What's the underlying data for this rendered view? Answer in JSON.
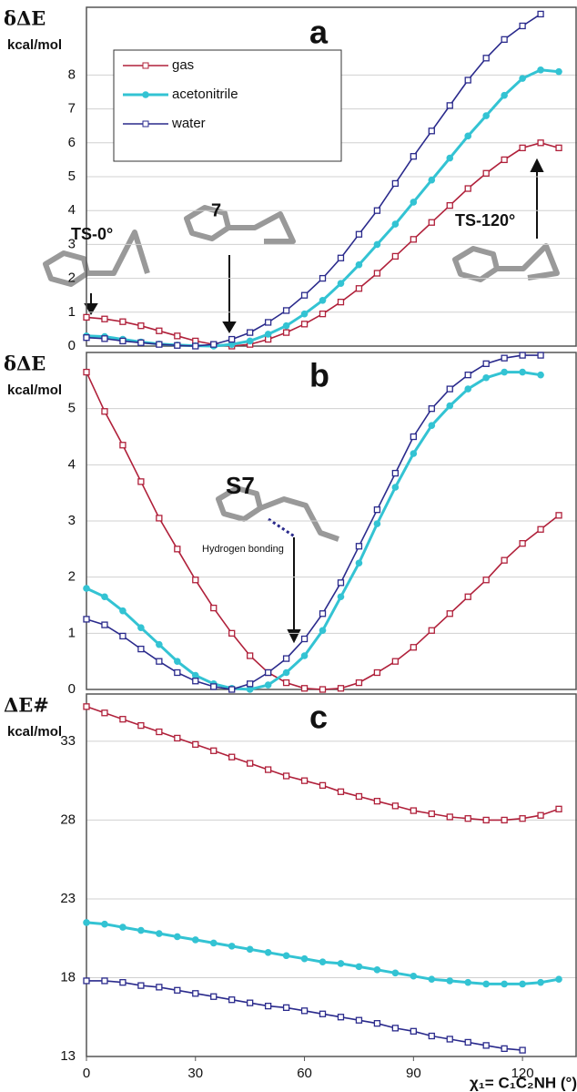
{
  "chart_data": [
    {
      "type": "line",
      "panel_label": "a",
      "y_label": "δΔE",
      "y_unit": "kcal/mol",
      "x": [
        0,
        5,
        10,
        15,
        20,
        25,
        30,
        35,
        40,
        45,
        50,
        55,
        60,
        65,
        70,
        75,
        80,
        85,
        90,
        95,
        100,
        105,
        110,
        115,
        120,
        125,
        130
      ],
      "xlim": [
        0,
        135
      ],
      "ylim": [
        0,
        10
      ],
      "yticks": [
        0,
        1,
        2,
        3,
        4,
        5,
        6,
        7,
        8
      ],
      "grid": true,
      "legend": "upper left",
      "annotations": [
        "TS-0°",
        "7",
        "TS-120°"
      ],
      "series": [
        {
          "name": "gas",
          "color": "#b0203a",
          "marker": "open",
          "values": [
            0.85,
            0.8,
            0.72,
            0.6,
            0.45,
            0.3,
            0.15,
            0.05,
            0.0,
            0.05,
            0.2,
            0.4,
            0.65,
            0.95,
            1.3,
            1.7,
            2.15,
            2.65,
            3.15,
            3.65,
            4.15,
            4.65,
            5.1,
            5.5,
            5.85,
            6.0,
            5.85
          ]
        },
        {
          "name": "acetonitrile",
          "color": "#33c3d3",
          "marker": "filled",
          "values": [
            0.3,
            0.28,
            0.2,
            0.12,
            0.06,
            0.03,
            0.01,
            0.0,
            0.05,
            0.15,
            0.35,
            0.6,
            0.95,
            1.35,
            1.85,
            2.4,
            3.0,
            3.6,
            4.25,
            4.9,
            5.55,
            6.2,
            6.8,
            7.4,
            7.9,
            8.15,
            8.1
          ]
        },
        {
          "name": "water",
          "color": "#2a2a8c",
          "marker": "open",
          "values": [
            0.25,
            0.22,
            0.15,
            0.1,
            0.05,
            0.02,
            0.0,
            0.05,
            0.2,
            0.4,
            0.7,
            1.05,
            1.5,
            2.0,
            2.6,
            3.3,
            4.0,
            4.8,
            5.6,
            6.35,
            7.1,
            7.85,
            8.5,
            9.05,
            9.45,
            9.8,
            null
          ]
        }
      ]
    },
    {
      "type": "line",
      "panel_label": "b",
      "y_label": "δΔE",
      "y_unit": "kcal/mol",
      "x": [
        0,
        5,
        10,
        15,
        20,
        25,
        30,
        35,
        40,
        45,
        50,
        55,
        60,
        65,
        70,
        75,
        80,
        85,
        90,
        95,
        100,
        105,
        110,
        115,
        120,
        125,
        130
      ],
      "xlim": [
        0,
        135
      ],
      "ylim": [
        0,
        6
      ],
      "yticks": [
        0,
        1,
        2,
        3,
        4,
        5
      ],
      "grid": true,
      "annotations": [
        "S7",
        "Hydrogen bonding"
      ],
      "series": [
        {
          "color": "#b0203a",
          "marker": "open",
          "values": [
            5.65,
            4.95,
            4.35,
            3.7,
            3.05,
            2.5,
            1.95,
            1.45,
            1.0,
            0.6,
            0.3,
            0.12,
            0.02,
            0.0,
            0.02,
            0.12,
            0.3,
            0.5,
            0.75,
            1.05,
            1.35,
            1.65,
            1.95,
            2.3,
            2.6,
            2.85,
            3.1
          ]
        },
        {
          "color": "#33c3d3",
          "marker": "filled",
          "values": [
            1.8,
            1.65,
            1.4,
            1.1,
            0.8,
            0.5,
            0.25,
            0.1,
            0.02,
            0.0,
            0.08,
            0.3,
            0.6,
            1.05,
            1.65,
            2.25,
            2.95,
            3.6,
            4.2,
            4.7,
            5.05,
            5.35,
            5.55,
            5.65,
            5.65,
            5.6,
            null
          ]
        },
        {
          "color": "#2a2a8c",
          "marker": "open",
          "values": [
            1.25,
            1.15,
            0.95,
            0.72,
            0.5,
            0.3,
            0.15,
            0.05,
            0.0,
            0.1,
            0.3,
            0.55,
            0.9,
            1.35,
            1.9,
            2.55,
            3.2,
            3.85,
            4.5,
            5.0,
            5.35,
            5.6,
            5.8,
            5.9,
            5.95,
            5.95,
            null
          ]
        }
      ]
    },
    {
      "type": "line",
      "panel_label": "c",
      "y_label": "ΔE#",
      "y_unit": "kcal/mol",
      "x": [
        0,
        5,
        10,
        15,
        20,
        25,
        30,
        35,
        40,
        45,
        50,
        55,
        60,
        65,
        70,
        75,
        80,
        85,
        90,
        95,
        100,
        105,
        110,
        115,
        120,
        125,
        130
      ],
      "xlim": [
        0,
        135
      ],
      "xticks": [
        0,
        30,
        60,
        90,
        120
      ],
      "x_label": "χ₁= C₁C₂NH (°)",
      "ylim": [
        13,
        36
      ],
      "yticks": [
        13,
        18,
        23,
        28,
        33
      ],
      "grid": true,
      "series": [
        {
          "color": "#b0203a",
          "marker": "open",
          "values": [
            35.2,
            34.8,
            34.4,
            34.0,
            33.6,
            33.2,
            32.8,
            32.4,
            32.0,
            31.6,
            31.2,
            30.8,
            30.5,
            30.2,
            29.8,
            29.5,
            29.2,
            28.9,
            28.6,
            28.4,
            28.2,
            28.1,
            28.0,
            28.0,
            28.1,
            28.3,
            28.7
          ]
        },
        {
          "color": "#33c3d3",
          "marker": "filled",
          "values": [
            21.5,
            21.4,
            21.2,
            21.0,
            20.8,
            20.6,
            20.4,
            20.2,
            20.0,
            19.8,
            19.6,
            19.4,
            19.2,
            19.0,
            18.9,
            18.7,
            18.5,
            18.3,
            18.1,
            17.9,
            17.8,
            17.7,
            17.6,
            17.6,
            17.6,
            17.7,
            17.9
          ]
        },
        {
          "color": "#2a2a8c",
          "marker": "open",
          "values": [
            17.8,
            17.8,
            17.7,
            17.5,
            17.4,
            17.2,
            17.0,
            16.8,
            16.6,
            16.4,
            16.2,
            16.1,
            15.9,
            15.7,
            15.5,
            15.3,
            15.1,
            14.8,
            14.6,
            14.3,
            14.1,
            13.9,
            13.7,
            13.5,
            13.4,
            null,
            null
          ]
        }
      ]
    }
  ]
}
